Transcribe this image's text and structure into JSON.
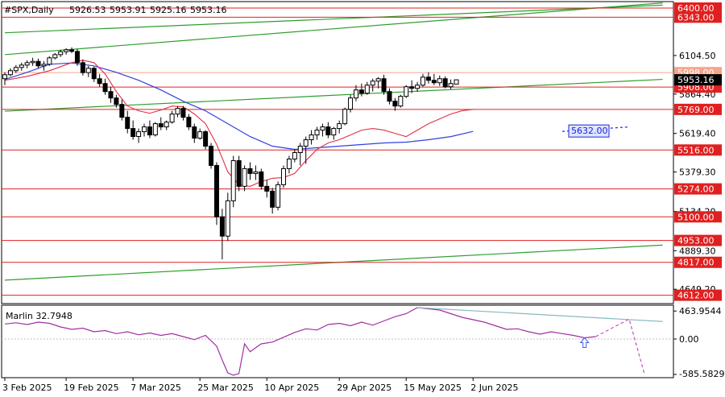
{
  "chart_data": {
    "type": "candlestick",
    "header": {
      "symbol": "#SPX,Daily",
      "open": "5926.53",
      "high": "5953.91",
      "low": "5925.16",
      "close": "5953.16"
    },
    "price_axis": {
      "range": [
        4560,
        6440
      ],
      "ticks": [
        {
          "value": 6104.5,
          "label": "6104.50"
        },
        {
          "value": 5864.4,
          "label": "5864.40"
        },
        {
          "value": 5619.4,
          "label": "5619.40"
        },
        {
          "value": 5379.3,
          "label": "5379.30"
        },
        {
          "value": 5134.2,
          "label": "5134.20"
        },
        {
          "value": 4889.3,
          "label": "4889.30"
        },
        {
          "value": 4649.2,
          "label": "4649.20"
        }
      ]
    },
    "current_price": {
      "value": 5953.16,
      "label": "5953.16"
    },
    "levels": [
      {
        "value": 6400,
        "label": "6400.00",
        "color": "#e02020",
        "style": "solid"
      },
      {
        "value": 6343,
        "label": "6343.00",
        "color": "#e02020",
        "style": "solid"
      },
      {
        "value": 5998,
        "label": "5998.00",
        "color": "#f5a58c",
        "style": "solid"
      },
      {
        "value": 5908,
        "label": "5908.00",
        "color": "#e02020",
        "style": "solid"
      },
      {
        "value": 5769,
        "label": "5769.00",
        "color": "#e02020",
        "style": "solid"
      },
      {
        "value": 5516,
        "label": "5516.00",
        "color": "#e02020",
        "style": "solid"
      },
      {
        "value": 5274,
        "label": "5274.00",
        "color": "#e02020",
        "style": "solid"
      },
      {
        "value": 5100,
        "label": "5100.00",
        "color": "#e02020",
        "style": "solid"
      },
      {
        "value": 4953,
        "label": "4953.00",
        "color": "#e02020",
        "style": "solid"
      },
      {
        "value": 4817,
        "label": "4817.00",
        "color": "#e02020",
        "style": "solid"
      },
      {
        "value": 4612,
        "label": "4612.00",
        "color": "#e02020",
        "style": "solid"
      }
    ],
    "channel_lines": [
      {
        "from": [
          0,
          6246
        ],
        "to": [
          118,
          6418
        ],
        "color": "#2e9e2e"
      },
      {
        "from": [
          0,
          6110
        ],
        "to": [
          118,
          6432
        ],
        "color": "#2e9e2e"
      },
      {
        "from": [
          0,
          5758
        ],
        "to": [
          118,
          5956
        ],
        "color": "#2e9e2e"
      },
      {
        "from": [
          0,
          4706
        ],
        "to": [
          118,
          4924
        ],
        "color": "#2e9e2e"
      }
    ],
    "forecast": {
      "from": [
        100,
        5632
      ],
      "to": [
        112,
        5660
      ],
      "label": "5632.00",
      "color": "#2020e0"
    },
    "x_axis": {
      "labels": [
        {
          "bar": 0,
          "label": "3 Feb 2025"
        },
        {
          "bar": 11,
          "label": "19 Feb 2025"
        },
        {
          "bar": 23,
          "label": "7 Mar 2025"
        },
        {
          "bar": 35,
          "label": "25 Mar 2025"
        },
        {
          "bar": 47,
          "label": "10 Apr 2025"
        },
        {
          "bar": 60,
          "label": "29 Apr 2025"
        },
        {
          "bar": 72,
          "label": "15 May 2025"
        },
        {
          "bar": 84,
          "label": "2 Jun 2025"
        }
      ]
    },
    "candles": [
      [
        5960,
        6000,
        5920,
        5985
      ],
      [
        5985,
        6025,
        5975,
        6010
      ],
      [
        6010,
        6045,
        5995,
        6030
      ],
      [
        6030,
        6060,
        6010,
        6045
      ],
      [
        6045,
        6075,
        6025,
        6060
      ],
      [
        6060,
        6090,
        6040,
        6068
      ],
      [
        6068,
        6085,
        6025,
        6040
      ],
      [
        6040,
        6070,
        6010,
        6050
      ],
      [
        6050,
        6100,
        6040,
        6090
      ],
      [
        6090,
        6120,
        6080,
        6110
      ],
      [
        6110,
        6140,
        6095,
        6128
      ],
      [
        6128,
        6150,
        6110,
        6140
      ],
      [
        6140,
        6155,
        6120,
        6130
      ],
      [
        6130,
        6145,
        6040,
        6060
      ],
      [
        6060,
        6080,
        5980,
        5998
      ],
      [
        5998,
        6040,
        5970,
        6025
      ],
      [
        6025,
        6035,
        5940,
        5960
      ],
      [
        5960,
        5990,
        5910,
        5930
      ],
      [
        5930,
        5960,
        5860,
        5880
      ],
      [
        5880,
        5910,
        5810,
        5840
      ],
      [
        5840,
        5860,
        5780,
        5800
      ],
      [
        5800,
        5830,
        5700,
        5720
      ],
      [
        5720,
        5760,
        5620,
        5650
      ],
      [
        5650,
        5700,
        5580,
        5600
      ],
      [
        5600,
        5650,
        5560,
        5630
      ],
      [
        5630,
        5680,
        5600,
        5660
      ],
      [
        5660,
        5700,
        5590,
        5610
      ],
      [
        5610,
        5690,
        5600,
        5680
      ],
      [
        5680,
        5720,
        5640,
        5660
      ],
      [
        5660,
        5700,
        5640,
        5690
      ],
      [
        5690,
        5760,
        5680,
        5740
      ],
      [
        5740,
        5790,
        5720,
        5775
      ],
      [
        5775,
        5790,
        5700,
        5720
      ],
      [
        5720,
        5740,
        5640,
        5660
      ],
      [
        5660,
        5680,
        5560,
        5590
      ],
      [
        5590,
        5650,
        5580,
        5630
      ],
      [
        5630,
        5640,
        5520,
        5540
      ],
      [
        5540,
        5560,
        5400,
        5420
      ],
      [
        5420,
        5440,
        5050,
        5100
      ],
      [
        5100,
        5150,
        4835,
        4980
      ],
      [
        4980,
        5250,
        4950,
        5200
      ],
      [
        5200,
        5480,
        5160,
        5450
      ],
      [
        5450,
        5480,
        5260,
        5290
      ],
      [
        5290,
        5420,
        5260,
        5400
      ],
      [
        5400,
        5440,
        5330,
        5370
      ],
      [
        5370,
        5420,
        5330,
        5380
      ],
      [
        5380,
        5400,
        5270,
        5290
      ],
      [
        5290,
        5330,
        5220,
        5260
      ],
      [
        5260,
        5280,
        5120,
        5160
      ],
      [
        5160,
        5320,
        5140,
        5300
      ],
      [
        5300,
        5420,
        5280,
        5400
      ],
      [
        5400,
        5480,
        5370,
        5460
      ],
      [
        5460,
        5520,
        5440,
        5500
      ],
      [
        5500,
        5560,
        5420,
        5540
      ],
      [
        5540,
        5600,
        5430,
        5580
      ],
      [
        5580,
        5640,
        5550,
        5610
      ],
      [
        5610,
        5660,
        5580,
        5640
      ],
      [
        5640,
        5680,
        5600,
        5660
      ],
      [
        5660,
        5690,
        5590,
        5610
      ],
      [
        5610,
        5660,
        5580,
        5650
      ],
      [
        5650,
        5700,
        5620,
        5680
      ],
      [
        5680,
        5780,
        5670,
        5770
      ],
      [
        5770,
        5860,
        5750,
        5840
      ],
      [
        5840,
        5920,
        5820,
        5890
      ],
      [
        5890,
        5930,
        5850,
        5870
      ],
      [
        5870,
        5940,
        5860,
        5920
      ],
      [
        5920,
        5960,
        5880,
        5945
      ],
      [
        5945,
        5970,
        5900,
        5960
      ],
      [
        5960,
        5985,
        5860,
        5880
      ],
      [
        5880,
        5900,
        5800,
        5820
      ],
      [
        5820,
        5840,
        5760,
        5790
      ],
      [
        5790,
        5860,
        5780,
        5850
      ],
      [
        5850,
        5920,
        5840,
        5910
      ],
      [
        5910,
        5950,
        5870,
        5900
      ],
      [
        5900,
        5940,
        5880,
        5920
      ],
      [
        5920,
        5990,
        5910,
        5970
      ],
      [
        5970,
        6000,
        5930,
        5950
      ],
      [
        5950,
        5990,
        5920,
        5935
      ],
      [
        5935,
        5980,
        5915,
        5960
      ],
      [
        5960,
        5975,
        5900,
        5910
      ],
      [
        5910,
        5955,
        5895,
        5930
      ],
      [
        5926.53,
        5953.91,
        5925.16,
        5953.16
      ]
    ],
    "ma_fast": [
      [
        0,
        5950
      ],
      [
        4,
        5975
      ],
      [
        8,
        6010
      ],
      [
        12,
        6060
      ],
      [
        14,
        6075
      ],
      [
        16,
        6060
      ],
      [
        18,
        5990
      ],
      [
        20,
        5880
      ],
      [
        22,
        5790
      ],
      [
        24,
        5760
      ],
      [
        26,
        5745
      ],
      [
        28,
        5765
      ],
      [
        30,
        5790
      ],
      [
        32,
        5785
      ],
      [
        34,
        5740
      ],
      [
        36,
        5680
      ],
      [
        38,
        5550
      ],
      [
        40,
        5380
      ],
      [
        42,
        5300
      ],
      [
        44,
        5290
      ],
      [
        46,
        5320
      ],
      [
        48,
        5340
      ],
      [
        50,
        5345
      ],
      [
        52,
        5370
      ],
      [
        54,
        5450
      ],
      [
        56,
        5520
      ],
      [
        58,
        5560
      ],
      [
        60,
        5580
      ],
      [
        62,
        5610
      ],
      [
        64,
        5640
      ],
      [
        66,
        5650
      ],
      [
        68,
        5640
      ],
      [
        70,
        5620
      ],
      [
        72,
        5600
      ],
      [
        74,
        5640
      ],
      [
        76,
        5680
      ],
      [
        78,
        5710
      ],
      [
        80,
        5740
      ],
      [
        82,
        5760
      ],
      [
        84,
        5769
      ]
    ],
    "ma_slow": [
      [
        0,
        5955
      ],
      [
        4,
        6000
      ],
      [
        8,
        6050
      ],
      [
        12,
        6058
      ],
      [
        16,
        6040
      ],
      [
        20,
        6000
      ],
      [
        24,
        5950
      ],
      [
        28,
        5890
      ],
      [
        32,
        5820
      ],
      [
        36,
        5760
      ],
      [
        40,
        5680
      ],
      [
        44,
        5600
      ],
      [
        48,
        5540
      ],
      [
        52,
        5520
      ],
      [
        56,
        5530
      ],
      [
        60,
        5540
      ],
      [
        64,
        5550
      ],
      [
        68,
        5560
      ],
      [
        72,
        5565
      ],
      [
        76,
        5580
      ],
      [
        80,
        5600
      ],
      [
        84,
        5632
      ]
    ],
    "indicator": {
      "name": "Marlin",
      "label": "Marlin 32.7948",
      "value": "32.7948",
      "axis_labels": [
        {
          "value": 463.9544,
          "label": "463.9544"
        },
        {
          "value": 0.0,
          "label": "0.00"
        },
        {
          "value": -585.5829,
          "label": "-585.5829"
        }
      ],
      "range": [
        -640,
        560
      ],
      "color": "#a030a0",
      "series": [
        [
          0,
          250
        ],
        [
          2,
          270
        ],
        [
          4,
          240
        ],
        [
          6,
          280
        ],
        [
          8,
          260
        ],
        [
          10,
          200
        ],
        [
          12,
          160
        ],
        [
          14,
          180
        ],
        [
          16,
          120
        ],
        [
          18,
          140
        ],
        [
          20,
          90
        ],
        [
          22,
          120
        ],
        [
          24,
          70
        ],
        [
          26,
          100
        ],
        [
          28,
          60
        ],
        [
          30,
          90
        ],
        [
          32,
          40
        ],
        [
          34,
          -10
        ],
        [
          36,
          60
        ],
        [
          38,
          -120
        ],
        [
          39,
          -350
        ],
        [
          40,
          -560
        ],
        [
          41,
          -600
        ],
        [
          42,
          -570
        ],
        [
          43,
          -80
        ],
        [
          44,
          -210
        ],
        [
          46,
          -80
        ],
        [
          48,
          -50
        ],
        [
          50,
          30
        ],
        [
          52,
          110
        ],
        [
          54,
          170
        ],
        [
          56,
          150
        ],
        [
          58,
          240
        ],
        [
          60,
          260
        ],
        [
          62,
          220
        ],
        [
          64,
          280
        ],
        [
          66,
          230
        ],
        [
          68,
          300
        ],
        [
          70,
          370
        ],
        [
          72,
          420
        ],
        [
          74,
          520
        ],
        [
          76,
          500
        ],
        [
          78,
          480
        ],
        [
          80,
          420
        ],
        [
          82,
          360
        ],
        [
          84,
          320
        ],
        [
          86,
          280
        ],
        [
          88,
          220
        ],
        [
          90,
          160
        ],
        [
          92,
          170
        ],
        [
          94,
          120
        ],
        [
          96,
          80
        ],
        [
          98,
          120
        ],
        [
          100,
          90
        ],
        [
          102,
          60
        ],
        [
          104,
          20
        ],
        [
          106,
          40
        ]
      ],
      "trend_line": {
        "from": [
          74,
          520
        ],
        "to": [
          118,
          290
        ],
        "color": "#8ab8c0"
      },
      "forecast": {
        "from": [
          106,
          40
        ],
        "via": [
          112,
          330
        ],
        "to": [
          118,
          -580
        ],
        "color": "#c050c0"
      },
      "arrow_bar": 104,
      "arrow_color": "#4060e0"
    }
  }
}
